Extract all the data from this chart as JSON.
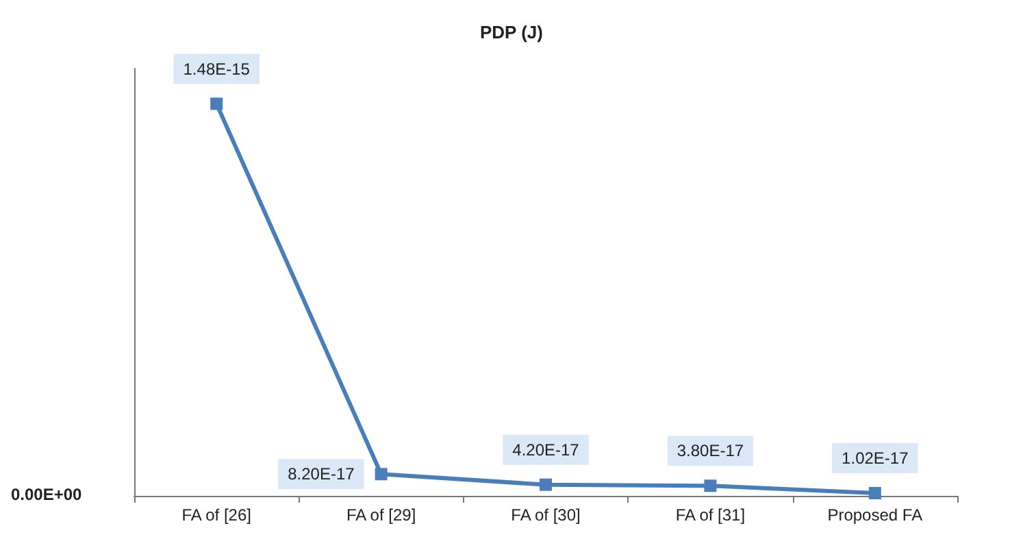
{
  "chart_data": {
    "type": "line",
    "title": "PDP (J)",
    "categories": [
      "FA of [26]",
      "FA of [29]",
      "FA of [30]",
      "FA of [31]",
      "Proposed FA"
    ],
    "series": [
      {
        "color": "#4a7ebb",
        "values": [
          1.48e-15,
          8.2e-17,
          4.2e-17,
          3.8e-17,
          1.02e-17
        ],
        "value_labels": [
          "1.48E-15",
          "8.20E-17",
          "4.20E-17",
          "3.80E-17",
          "1.02E-17"
        ]
      }
    ],
    "annotations": [
      "0.00E+00"
    ],
    "marker": "square",
    "line_style": "solid"
  }
}
